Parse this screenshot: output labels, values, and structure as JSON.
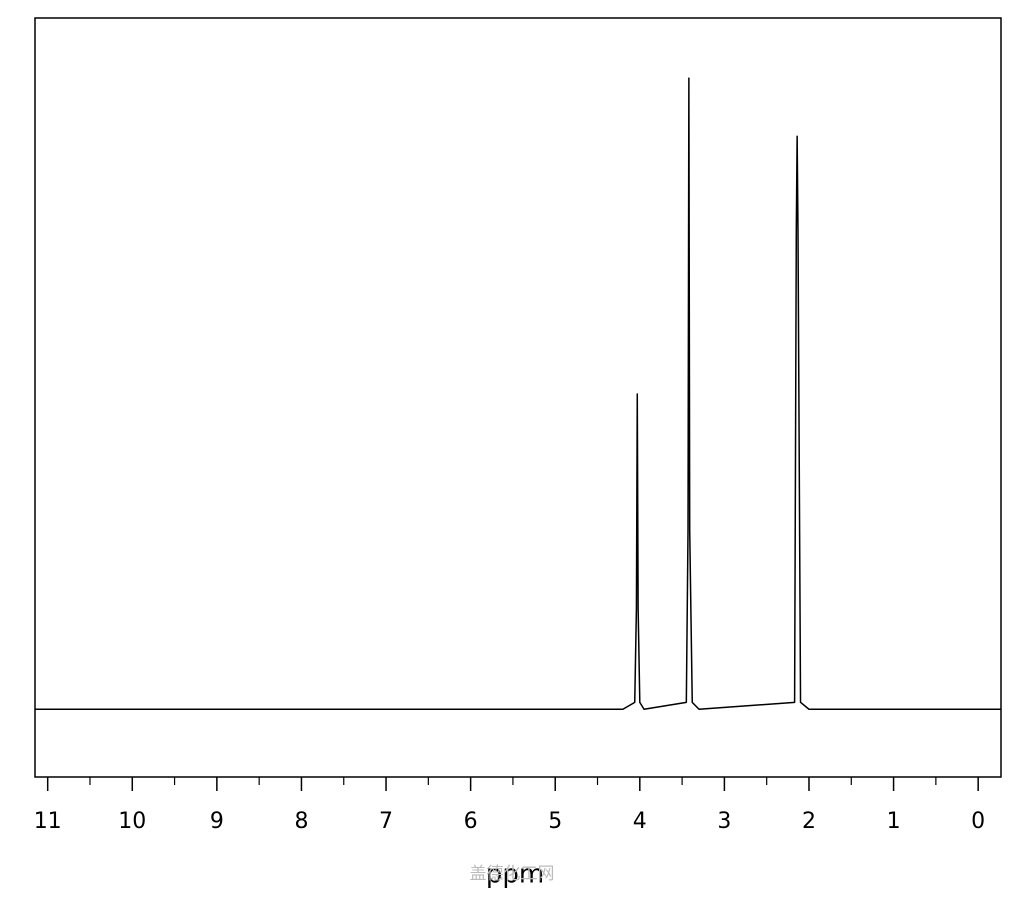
{
  "chart_data": {
    "type": "line",
    "xlabel": "ppm",
    "watermark": "盖德化工网",
    "x": [
      11.15,
      4.2,
      4.06,
      4.04,
      4.03,
      4.02,
      4.0,
      3.95,
      3.45,
      3.43,
      3.42,
      3.41,
      3.38,
      3.3,
      2.17,
      2.15,
      2.14,
      2.13,
      2.1,
      2.0,
      -0.27
    ],
    "values": [
      0,
      0,
      1,
      14.6,
      45.6,
      14.6,
      1,
      0,
      1,
      25.9,
      91.3,
      25.9,
      1,
      0,
      1,
      69.3,
      82.9,
      69.3,
      1,
      0,
      0
    ],
    "color": "#000000",
    "xlim": [
      11.15,
      -0.27
    ],
    "ylim": [
      -9.8,
      100
    ],
    "xticks": [
      11,
      10,
      9,
      8,
      7,
      6,
      5,
      4,
      3,
      2,
      1,
      0
    ],
    "xminorticks": [
      10.5,
      9.5,
      8.5,
      7.5,
      6.5,
      5.5,
      4.5,
      3.5,
      2.5,
      1.5,
      0.5
    ]
  }
}
